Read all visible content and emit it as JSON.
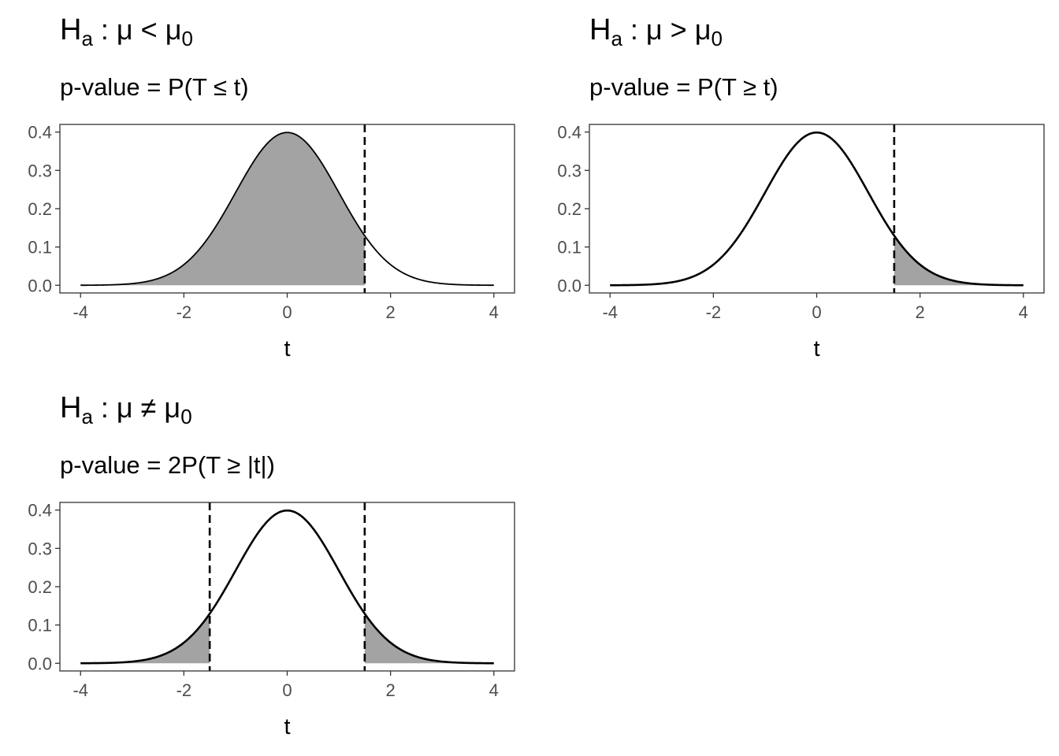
{
  "chart_data": [
    {
      "type": "area",
      "title": {
        "main": "H",
        "sub": "a",
        "op": " : μ < μ",
        "zero": "0"
      },
      "subtitle": "p-value = P(T ≤ t)",
      "xlabel": "t",
      "ylabel": "",
      "xlim": [
        -4,
        4
      ],
      "ylim": [
        0,
        0.4
      ],
      "x_ticks": [
        "-4",
        "-2",
        "0",
        "2",
        "4"
      ],
      "y_ticks": [
        "0.0",
        "0.1",
        "0.2",
        "0.3",
        "0.4"
      ],
      "curve": "standard normal density, x from -4 to 4",
      "critical_values": [
        1.5
      ],
      "shaded_region": "x ≤ 1.5",
      "grid": false
    },
    {
      "type": "area",
      "title": {
        "main": "H",
        "sub": "a",
        "op": " : μ > μ",
        "zero": "0"
      },
      "subtitle": "p-value = P(T ≥ t)",
      "xlabel": "t",
      "ylabel": "",
      "xlim": [
        -4,
        4
      ],
      "ylim": [
        0,
        0.4
      ],
      "x_ticks": [
        "-4",
        "-2",
        "0",
        "2",
        "4"
      ],
      "y_ticks": [
        "0.0",
        "0.1",
        "0.2",
        "0.3",
        "0.4"
      ],
      "curve": "standard normal density, x from -4 to 4",
      "critical_values": [
        1.5
      ],
      "shaded_region": "x ≥ 1.5",
      "grid": false
    },
    {
      "type": "area",
      "title": {
        "main": "H",
        "sub": "a",
        "op": " : μ ≠ μ",
        "zero": "0"
      },
      "subtitle": "p-value = 2P(T ≥ |t|)",
      "xlabel": "t",
      "ylabel": "",
      "xlim": [
        -4,
        4
      ],
      "ylim": [
        0,
        0.4
      ],
      "x_ticks": [
        "-4",
        "-2",
        "0",
        "2",
        "4"
      ],
      "y_ticks": [
        "0.0",
        "0.1",
        "0.2",
        "0.3",
        "0.4"
      ],
      "curve": "standard normal density, x from -4 to 4",
      "critical_values": [
        -1.5,
        1.5
      ],
      "shaded_region": "x ≤ -1.5 or x ≥ 1.5",
      "grid": false
    }
  ],
  "style": {
    "curve_color": "#000000",
    "shade_color": "#a3a3a3",
    "panel_border_color": "#333333",
    "tick_label_color": "#4d4d4d",
    "critical_line_color": "#000000"
  }
}
